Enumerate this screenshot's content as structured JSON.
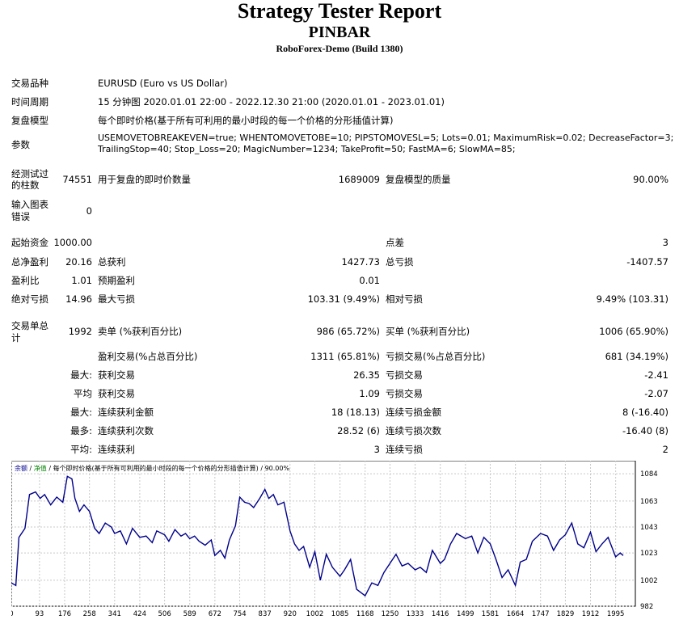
{
  "header": {
    "title": "Strategy Tester Report",
    "subtitle": "PINBAR",
    "server": "RoboForex-Demo (Build 1380)"
  },
  "info": {
    "symbol_label": "交易品种",
    "symbol_value": "EURUSD (Euro vs US Dollar)",
    "period_label": "时间周期",
    "period_value": "15 分钟图 2020.01.01 22:00 - 2022.12.30 21:00 (2020.01.01 - 2023.01.01)",
    "model_label": "复盘模型",
    "model_value": "每个即时价格(基于所有可利用的最小时段的每一个价格的分形插值计算)",
    "params_label": "参数",
    "params_line1": "USEMOVETOBREAKEVEN=true; WHENTOMOVETOBE=10; PIPSTOMOVESL=5; Lots=0.01; MaximumRisk=0.02; DecreaseFactor=3;",
    "params_line2": "TrailingStop=40; Stop_Loss=20; MagicNumber=1234; TakeProfit=50; FastMA=6; SlowMA=85;"
  },
  "bars": {
    "bars_label_1": "经测试过",
    "bars_label_2": "的柱数",
    "bars_value": "74551",
    "ticks_label": "用于复盘的即时价数量",
    "ticks_value": "1689009",
    "quality_label": "复盘模型的质量",
    "quality_value": "90.00%",
    "errors_label_1": "输入图表",
    "errors_label_2": "错误",
    "errors_value": "0"
  },
  "results": {
    "deposit_label": "起始资金",
    "deposit_value": "1000.00",
    "spread_label": "点差",
    "spread_value": "3",
    "net_label": "总净盈利",
    "net_value": "20.16",
    "gross_profit_label": "总获利",
    "gross_profit_value": "1427.73",
    "gross_loss_label": "总亏损",
    "gross_loss_value": "-1407.57",
    "pf_label": "盈利比",
    "pf_value": "1.01",
    "payoff_label": "预期盈利",
    "payoff_value": "0.01",
    "abs_dd_label": "绝对亏损",
    "abs_dd_value": "14.96",
    "max_dd_label": "最大亏损",
    "max_dd_value": "103.31 (9.49%)",
    "rel_dd_label": "相对亏损",
    "rel_dd_value": "9.49% (103.31)"
  },
  "trades": {
    "total_label_1": "交易单总",
    "total_label_2": "计",
    "total_value": "1992",
    "short_label": "卖单 (%获利百分比)",
    "short_value": "986 (65.72%)",
    "long_label": "买单 (%获利百分比)",
    "long_value": "1006 (65.90%)",
    "profit_trades_label": "盈利交易(%占总百分比)",
    "profit_trades_value": "1311 (65.81%)",
    "loss_trades_label": "亏损交易(%占总百分比)",
    "loss_trades_value": "681 (34.19%)",
    "largest_label": "最大:",
    "largest_profit_label": "获利交易",
    "largest_profit_value": "26.35",
    "largest_loss_label": "亏损交易",
    "largest_loss_value": "-2.41",
    "average_label": "平均",
    "average_profit_label": "获利交易",
    "average_profit_value": "1.09",
    "average_loss_label": "亏损交易",
    "average_loss_value": "-2.07",
    "max_label": "最大:",
    "max_cons_wins_label": "连续获利金额",
    "max_cons_wins_value": "18 (18.13)",
    "max_cons_losses_label": "连续亏损金额",
    "max_cons_losses_value": "8 (-16.40)",
    "maximal_label": "最多:",
    "maximal_cons_profit_label": "连续获利次数",
    "maximal_cons_profit_value": "28.52 (6)",
    "maximal_cons_loss_label": "连续亏损次数",
    "maximal_cons_loss_value": "-16.40 (8)",
    "avg_cons_label": "平均:",
    "avg_cons_wins_label": "连续获利",
    "avg_cons_wins_value": "3",
    "avg_cons_losses_label": "连续亏损",
    "avg_cons_losses_value": "2"
  },
  "chart_legend": {
    "balance": "余额",
    "sep1": " / ",
    "equity": "净值",
    "rest": " / 每个即时价格(基于所有可利用的最小时段的每一个价格的分形插值计算) / 90.00%"
  },
  "colors": {
    "line": "#00008b",
    "grid": "#c8c8c8",
    "legend_balance": "#00008b",
    "legend_equity": "#008000"
  },
  "chart_data": {
    "type": "line",
    "title": "",
    "xlabel": "",
    "ylabel": "",
    "xlim": [
      0,
      2060
    ],
    "ylim": [
      982,
      1094
    ],
    "x_ticks": [
      0,
      93,
      176,
      258,
      341,
      424,
      506,
      589,
      672,
      754,
      837,
      920,
      1002,
      1085,
      1168,
      1250,
      1333,
      1416,
      1499,
      1581,
      1664,
      1747,
      1829,
      1912,
      1995
    ],
    "y_ticks": [
      982,
      1002,
      1023,
      1043,
      1063,
      1084
    ],
    "grid": true,
    "series": [
      {
        "x": [
          0,
          15,
          25,
          45,
          60,
          80,
          95,
          110,
          130,
          150,
          170,
          185,
          200,
          210,
          225,
          240,
          258,
          275,
          290,
          310,
          330,
          341,
          360,
          380,
          400,
          424,
          445,
          465,
          480,
          506,
          520,
          540,
          560,
          575,
          589,
          605,
          620,
          640,
          660,
          672,
          690,
          705,
          720,
          740,
          754,
          770,
          785,
          800,
          820,
          837,
          850,
          865,
          880,
          900,
          920,
          935,
          950,
          965,
          985,
          1002,
          1020,
          1040,
          1060,
          1085,
          1100,
          1120,
          1140,
          1168,
          1190,
          1210,
          1230,
          1250,
          1270,
          1290,
          1310,
          1333,
          1350,
          1370,
          1390,
          1416,
          1430,
          1450,
          1470,
          1499,
          1520,
          1540,
          1560,
          1581,
          1600,
          1620,
          1640,
          1664,
          1680,
          1700,
          1720,
          1747,
          1770,
          1790,
          1810,
          1829,
          1850,
          1870,
          1890,
          1912,
          1930,
          1950,
          1970,
          1995,
          2010,
          2020
        ],
        "y": [
          1000,
          998,
          1035,
          1042,
          1068,
          1070,
          1065,
          1068,
          1060,
          1066,
          1062,
          1082,
          1080,
          1065,
          1055,
          1060,
          1055,
          1042,
          1038,
          1046,
          1043,
          1038,
          1040,
          1030,
          1042,
          1035,
          1036,
          1031,
          1040,
          1037,
          1032,
          1041,
          1036,
          1038,
          1034,
          1036,
          1032,
          1029,
          1033,
          1021,
          1025,
          1019,
          1033,
          1044,
          1066,
          1062,
          1061,
          1058,
          1065,
          1072,
          1065,
          1068,
          1060,
          1062,
          1040,
          1030,
          1025,
          1028,
          1012,
          1024,
          1002,
          1022,
          1012,
          1005,
          1010,
          1018,
          995,
          990,
          1000,
          998,
          1008,
          1015,
          1022,
          1013,
          1015,
          1010,
          1012,
          1008,
          1025,
          1015,
          1018,
          1030,
          1038,
          1034,
          1036,
          1023,
          1035,
          1030,
          1018,
          1004,
          1010,
          998,
          1016,
          1018,
          1032,
          1038,
          1036,
          1025,
          1033,
          1037,
          1046,
          1030,
          1027,
          1039,
          1024,
          1030,
          1035,
          1020,
          1023,
          1021
        ]
      }
    ]
  }
}
